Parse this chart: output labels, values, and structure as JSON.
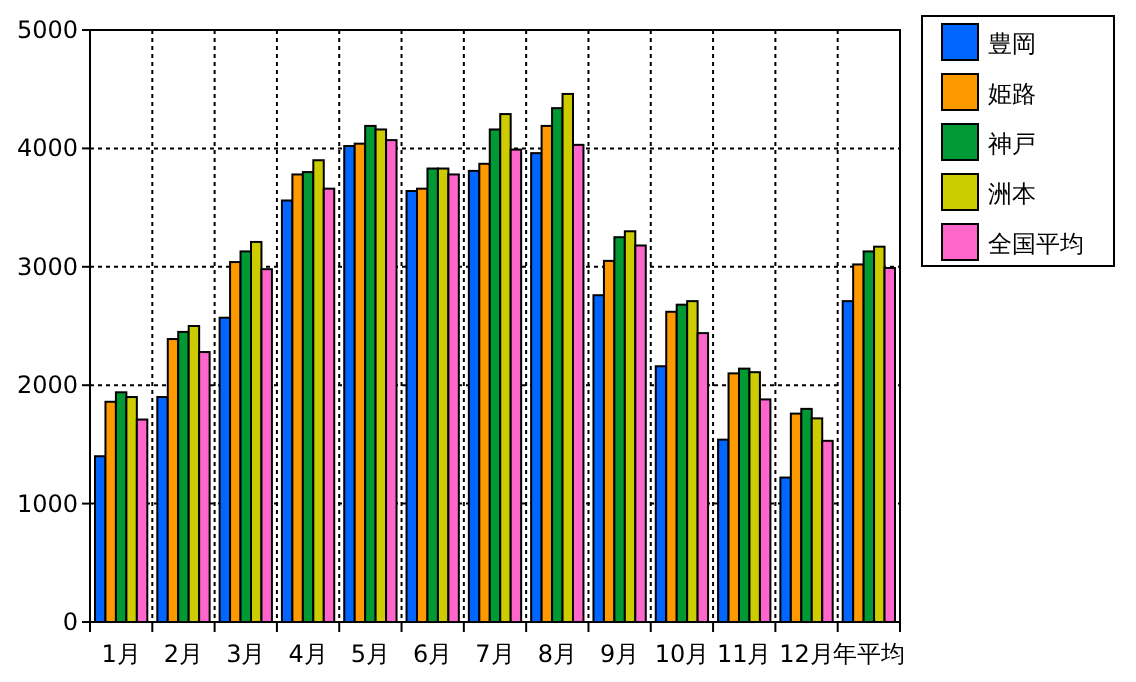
{
  "chart_data": {
    "type": "bar",
    "categories": [
      "1月",
      "2月",
      "3月",
      "4月",
      "5月",
      "6月",
      "7月",
      "8月",
      "9月",
      "10月",
      "11月",
      "12月",
      "年平均"
    ],
    "series": [
      {
        "name": "豊岡",
        "color": "#0066ff",
        "values": [
          1400,
          1900,
          2570,
          3560,
          4020,
          3640,
          3810,
          3960,
          2760,
          2160,
          1540,
          1220,
          2710
        ]
      },
      {
        "name": "姫路",
        "color": "#ff9900",
        "values": [
          1860,
          2390,
          3040,
          3780,
          4040,
          3660,
          3870,
          4190,
          3050,
          2620,
          2100,
          1760,
          3020
        ]
      },
      {
        "name": "神戸",
        "color": "#009933",
        "values": [
          1940,
          2450,
          3130,
          3800,
          4190,
          3830,
          4160,
          4340,
          3250,
          2680,
          2140,
          1800,
          3130
        ]
      },
      {
        "name": "洲本",
        "color": "#cccc00",
        "values": [
          1900,
          2500,
          3210,
          3900,
          4160,
          3830,
          4290,
          4460,
          3300,
          2710,
          2110,
          1720,
          3170
        ]
      },
      {
        "name": "全国平均",
        "color": "#ff66cc",
        "values": [
          1710,
          2280,
          2980,
          3660,
          4070,
          3780,
          3990,
          4030,
          3180,
          2440,
          1880,
          1530,
          2990
        ]
      }
    ],
    "ylim": [
      0,
      5000
    ],
    "yticks": [
      0,
      1000,
      2000,
      3000,
      4000,
      5000
    ],
    "grid": true,
    "legend": "right"
  }
}
